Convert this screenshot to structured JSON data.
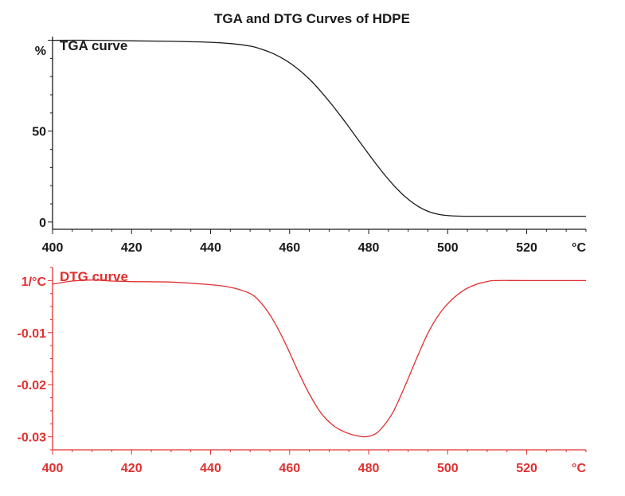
{
  "title": "TGA and DTG Curves of HDPE",
  "colors": {
    "tga": "#1a1a1a",
    "dtg": "#e03030",
    "text": "#1a1a1a"
  },
  "chart_data": [
    {
      "type": "line",
      "name": "tga",
      "label": "TGA curve",
      "ylabel": "%",
      "xlabel": "°C",
      "xlim": [
        400,
        535
      ],
      "ylim": [
        -4,
        102
      ],
      "x_ticks": [
        400,
        420,
        440,
        460,
        480,
        500,
        520
      ],
      "y_ticks": [
        0,
        50
      ],
      "x": [
        400,
        410,
        420,
        430,
        440,
        445,
        450,
        453,
        456,
        459,
        462,
        465,
        468,
        471,
        474,
        477,
        480,
        483,
        486,
        489,
        492,
        495,
        498,
        501,
        504,
        507,
        510,
        520,
        535
      ],
      "y": [
        100,
        100,
        99.7,
        99.4,
        98.9,
        98.2,
        96.8,
        95,
        92.5,
        89,
        84.4,
        78.6,
        71.6,
        63.7,
        55.2,
        46.3,
        37.4,
        28.8,
        21,
        14.4,
        9.3,
        5.9,
        4.1,
        3.4,
        3.2,
        3.2,
        3.2,
        3.2,
        3.2
      ]
    },
    {
      "type": "line",
      "name": "dtg",
      "label": "DTG curve",
      "ylabel": "1/°C",
      "xlabel": "°C",
      "xlim": [
        400,
        535
      ],
      "ylim": [
        -0.0325,
        0.0025
      ],
      "x_ticks": [
        400,
        420,
        440,
        460,
        480,
        500,
        520
      ],
      "y_ticks": [
        -0.03,
        -0.02,
        -0.01
      ],
      "x": [
        400,
        405,
        410,
        415,
        420,
        430,
        440,
        445,
        450,
        453,
        456,
        459,
        462,
        465,
        468,
        471,
        474,
        477,
        479,
        481,
        483,
        486,
        489,
        492,
        495,
        498,
        501,
        504,
        507,
        510,
        512,
        520,
        535
      ],
      "y": [
        -0.0007,
        -0.0001,
        0.0001,
        -0.0001,
        -0.0002,
        -0.0003,
        -0.0008,
        -0.0013,
        -0.0025,
        -0.0045,
        -0.0078,
        -0.0122,
        -0.0172,
        -0.0218,
        -0.0255,
        -0.0278,
        -0.0291,
        -0.0298,
        -0.03,
        -0.0297,
        -0.0286,
        -0.0255,
        -0.0206,
        -0.0152,
        -0.0101,
        -0.0063,
        -0.0037,
        -0.0019,
        -0.0008,
        -0.0002,
        0,
        0,
        0
      ]
    }
  ]
}
